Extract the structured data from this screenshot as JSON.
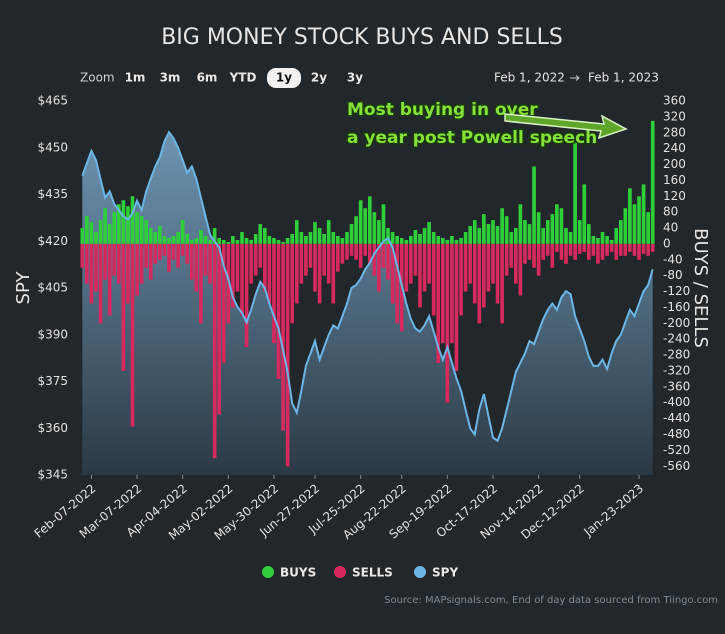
{
  "chart_data": {
    "type": "combo",
    "title": "BIG MONEY STOCK BUYS AND SELLS",
    "range_selector": {
      "label": "Zoom",
      "buttons": [
        "1m",
        "3m",
        "6m",
        "YTD",
        "1y",
        "2y",
        "3y"
      ],
      "selected": 4,
      "from": "Feb 1, 2022",
      "to": "Feb 1, 2023"
    },
    "y_label": "SPY",
    "y2_label": "BUYS / SELLS",
    "annotations": [
      "Most buying in over",
      "a year post Powell speech"
    ],
    "source": "Source: MAPsignals.com, End of day data sourced from Tiingo.com",
    "legend": "bottom",
    "ylim": [
      345,
      465
    ],
    "yticks": [
      {
        "value": 345,
        "label": "$345"
      },
      {
        "value": 360,
        "label": "$360"
      },
      {
        "value": 375,
        "label": "$375"
      },
      {
        "value": 390,
        "label": "$390"
      },
      {
        "value": 405,
        "label": "$405"
      },
      {
        "value": 420,
        "label": "$420"
      },
      {
        "value": 435,
        "label": "$435"
      },
      {
        "value": 450,
        "label": "$450"
      },
      {
        "value": 465,
        "label": "$465"
      }
    ],
    "y2lim": [
      -582,
      360
    ],
    "y2ticks": [
      360,
      320,
      280,
      240,
      200,
      160,
      120,
      80,
      40,
      0,
      -40,
      -80,
      -120,
      -160,
      -200,
      -240,
      -280,
      -320,
      -360,
      -400,
      -440,
      -480,
      -520,
      -560
    ],
    "categories": [
      null,
      null,
      "Feb-07-2022",
      null,
      null,
      null,
      null,
      null,
      null,
      null,
      null,
      null,
      "Mar-07-2022",
      null,
      null,
      null,
      null,
      null,
      null,
      null,
      null,
      null,
      "Apr-04-2022",
      null,
      null,
      null,
      null,
      null,
      null,
      null,
      null,
      null,
      "May-02-2022",
      null,
      null,
      null,
      null,
      null,
      null,
      null,
      null,
      null,
      "May-30-2022",
      null,
      null,
      null,
      null,
      null,
      null,
      null,
      null,
      "Jun-27-2022",
      null,
      null,
      null,
      null,
      null,
      null,
      null,
      null,
      null,
      "Jul-25-2022",
      null,
      null,
      null,
      null,
      null,
      null,
      null,
      null,
      "Aug-22-2022",
      null,
      null,
      null,
      null,
      null,
      null,
      null,
      null,
      null,
      "Sep-19-2022",
      null,
      null,
      null,
      null,
      null,
      null,
      null,
      null,
      null,
      "Oct-17-2022",
      null,
      null,
      null,
      null,
      null,
      null,
      null,
      null,
      null,
      "Nov-14-2022",
      null,
      null,
      null,
      null,
      null,
      null,
      null,
      null,
      "Dec-12-2022",
      null,
      null,
      null,
      null,
      null,
      null,
      null,
      null,
      null,
      null,
      null,
      null,
      "Jan-23-2023",
      null,
      null,
      null
    ],
    "series": [
      {
        "name": "BUYS",
        "type": "bar",
        "axis": "y2",
        "color": "#2fcf3a",
        "values": [
          40,
          70,
          55,
          30,
          60,
          90,
          50,
          80,
          100,
          110,
          95,
          120,
          80,
          70,
          60,
          40,
          30,
          45,
          20,
          15,
          20,
          30,
          60,
          25,
          10,
          15,
          35,
          20,
          10,
          40,
          15,
          10,
          5,
          20,
          10,
          30,
          15,
          10,
          25,
          50,
          40,
          20,
          15,
          10,
          5,
          15,
          25,
          60,
          30,
          20,
          30,
          55,
          40,
          25,
          60,
          30,
          20,
          15,
          30,
          50,
          70,
          110,
          90,
          120,
          80,
          60,
          100,
          40,
          30,
          20,
          15,
          10,
          20,
          35,
          25,
          40,
          55,
          30,
          20,
          15,
          10,
          20,
          10,
          15,
          30,
          45,
          60,
          40,
          75,
          50,
          60,
          45,
          90,
          70,
          30,
          40,
          100,
          60,
          50,
          195,
          80,
          40,
          60,
          75,
          100,
          90,
          40,
          30,
          255,
          60,
          150,
          50,
          20,
          15,
          30,
          20,
          10,
          40,
          60,
          90,
          140,
          100,
          120,
          150,
          80,
          310
        ]
      },
      {
        "name": "SELLS",
        "type": "bar",
        "axis": "y2",
        "color": "#d62a5e",
        "values": [
          -60,
          -100,
          -150,
          -120,
          -200,
          -90,
          -180,
          -80,
          -100,
          -320,
          -150,
          -460,
          -130,
          -100,
          -60,
          -90,
          -50,
          -40,
          -30,
          -70,
          -40,
          -60,
          -30,
          -50,
          -90,
          -120,
          -200,
          -80,
          -100,
          -540,
          -430,
          -300,
          -200,
          -160,
          -120,
          -180,
          -260,
          -100,
          -80,
          -60,
          -120,
          -150,
          -250,
          -340,
          -470,
          -560,
          -200,
          -150,
          -100,
          -80,
          -60,
          -120,
          -150,
          -80,
          -100,
          -150,
          -70,
          -50,
          -40,
          -30,
          -40,
          -60,
          -30,
          -50,
          -80,
          -120,
          -60,
          -90,
          -150,
          -200,
          -220,
          -120,
          -100,
          -80,
          -160,
          -120,
          -100,
          -180,
          -300,
          -250,
          -400,
          -250,
          -320,
          -180,
          -120,
          -100,
          -150,
          -200,
          -160,
          -120,
          -100,
          -150,
          -200,
          -80,
          -60,
          -100,
          -130,
          -50,
          -40,
          -60,
          -80,
          -40,
          -30,
          -60,
          -20,
          -40,
          -50,
          -30,
          -40,
          -25,
          -20,
          -40,
          -30,
          -50,
          -40,
          -30,
          -20,
          -40,
          -30,
          -30,
          -20,
          -30,
          -40,
          -25,
          -30,
          -20
        ]
      },
      {
        "name": "SPY",
        "type": "area",
        "axis": "y",
        "color": "#6cb6e6",
        "values": [
          441,
          445,
          449,
          446,
          440,
          434,
          436,
          432,
          430,
          428,
          427,
          429,
          433,
          430,
          436,
          440,
          444,
          447,
          452,
          455,
          453,
          450,
          446,
          442,
          444,
          440,
          434,
          428,
          422,
          420,
          418,
          412,
          408,
          402,
          399,
          397,
          394,
          398,
          403,
          407,
          405,
          400,
          396,
          392,
          385,
          378,
          368,
          365,
          372,
          380,
          384,
          388,
          382,
          386,
          390,
          393,
          392,
          396,
          400,
          405,
          406,
          408,
          411,
          413,
          416,
          418,
          420,
          421,
          418,
          412,
          406,
          400,
          395,
          392,
          391,
          393,
          396,
          391,
          386,
          382,
          386,
          381,
          376,
          372,
          366,
          360,
          358,
          366,
          371,
          364,
          357,
          356,
          360,
          366,
          372,
          378,
          381,
          384,
          388,
          387,
          391,
          395,
          398,
          400,
          398,
          402,
          404,
          403,
          396,
          392,
          388,
          383,
          380,
          380,
          382,
          379,
          384,
          388,
          390,
          394,
          398,
          396,
          400,
          404,
          406,
          411
        ]
      }
    ]
  }
}
